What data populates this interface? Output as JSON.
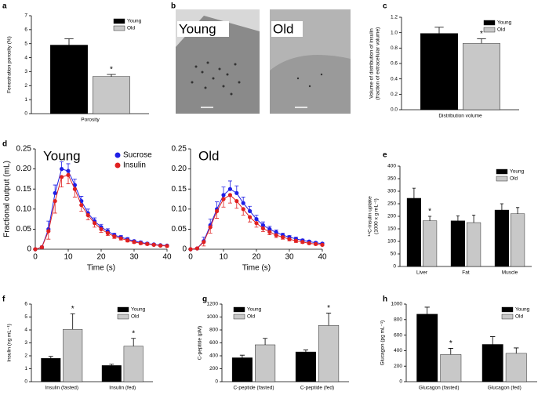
{
  "chart_data": [
    {
      "type": "bar",
      "label": "a",
      "ylabel": "Fenestration porosity (%)",
      "categories": [
        "Porosity"
      ],
      "series": [
        {
          "name": "Young",
          "color": "#000000",
          "values": [
            4.9
          ],
          "errors": [
            0.45
          ]
        },
        {
          "name": "Old",
          "color": "#c8c8c8",
          "values": [
            2.65
          ],
          "errors": [
            0.15
          ],
          "significance": [
            "*"
          ]
        }
      ],
      "ylim": [
        0,
        7
      ],
      "yticks": [
        0,
        1,
        2,
        3,
        4,
        5,
        6,
        7
      ],
      "legend": "upper right"
    },
    {
      "type": "bar",
      "label": "c",
      "ylabel": [
        "Volume of distribution of insulin",
        "(fraction of extracellular volume)"
      ],
      "categories": [
        "Distribution volume"
      ],
      "series": [
        {
          "name": "Young",
          "color": "#000000",
          "values": [
            0.99
          ],
          "errors": [
            0.08
          ]
        },
        {
          "name": "Old",
          "color": "#c8c8c8",
          "values": [
            0.86
          ],
          "errors": [
            0.06
          ],
          "significance": [
            "*"
          ]
        }
      ],
      "ylim": [
        0,
        1.2
      ],
      "yticks": [
        {
          "value": 0,
          "label": "0.0"
        },
        0.2,
        0.4,
        0.6,
        0.8,
        {
          "value": 1,
          "label": "1.0"
        },
        1.2
      ],
      "legend": "upper right"
    },
    {
      "type": "line",
      "label": "d",
      "title": "Young",
      "xlabel": "Time (s)",
      "ylabel": "Fractional output (mL)",
      "x": [
        0,
        2,
        4,
        6,
        8,
        10,
        12,
        14,
        16,
        18,
        20,
        22,
        24,
        26,
        28,
        30,
        32,
        34,
        36,
        38,
        40
      ],
      "series": [
        {
          "name": "Sucrose",
          "color": "#1f1fe6",
          "values": [
            0,
            0.005,
            0.05,
            0.14,
            0.2,
            0.195,
            0.16,
            0.12,
            0.09,
            0.07,
            0.055,
            0.045,
            0.035,
            0.03,
            0.025,
            0.02,
            0.017,
            0.014,
            0.012,
            0.01,
            0.009
          ],
          "errors": [
            0,
            0.003,
            0.02,
            0.02,
            0.018,
            0.018,
            0.015,
            0.012,
            0.01,
            0.008,
            0.007,
            0.006,
            0.005,
            0.004,
            0.004,
            0.003,
            0.003,
            0.003,
            0.002,
            0.002,
            0.002
          ]
        },
        {
          "name": "Insulin",
          "color": "#e02020",
          "values": [
            0,
            0.005,
            0.045,
            0.12,
            0.18,
            0.185,
            0.15,
            0.11,
            0.085,
            0.065,
            0.05,
            0.04,
            0.032,
            0.027,
            0.022,
            0.018,
            0.015,
            0.013,
            0.011,
            0.009,
            0.008
          ],
          "errors": [
            0,
            0.003,
            0.02,
            0.03,
            0.025,
            0.022,
            0.02,
            0.015,
            0.012,
            0.01,
            0.008,
            0.006,
            0.005,
            0.004,
            0.004,
            0.003,
            0.003,
            0.003,
            0.002,
            0.002,
            0.002
          ]
        }
      ],
      "xlim": [
        0,
        40
      ],
      "xticks": [
        0,
        10,
        20,
        30,
        40
      ],
      "ylim": [
        0,
        0.25
      ],
      "yticks": [
        0,
        0.05,
        {
          "value": 0.1,
          "label": "0.10"
        },
        0.15,
        {
          "value": 0.2,
          "label": "0.20"
        },
        0.25
      ],
      "legend": "upper right"
    },
    {
      "type": "line",
      "title": "Old",
      "xlabel": "Time (s)",
      "x": [
        0,
        2,
        4,
        6,
        8,
        10,
        12,
        14,
        16,
        18,
        20,
        22,
        24,
        26,
        28,
        30,
        32,
        34,
        36,
        38,
        40
      ],
      "series": [
        {
          "color": "#1f1fe6",
          "values": [
            0,
            0.002,
            0.02,
            0.06,
            0.1,
            0.135,
            0.15,
            0.14,
            0.115,
            0.095,
            0.075,
            0.06,
            0.05,
            0.042,
            0.035,
            0.03,
            0.026,
            0.022,
            0.019,
            0.016,
            0.014
          ],
          "errors": [
            0,
            0.002,
            0.01,
            0.015,
            0.018,
            0.02,
            0.02,
            0.018,
            0.015,
            0.012,
            0.01,
            0.008,
            0.007,
            0.006,
            0.005,
            0.004,
            0.004,
            0.003,
            0.003,
            0.003,
            0.002
          ]
        },
        {
          "color": "#e02020",
          "values": [
            0,
            0.002,
            0.018,
            0.055,
            0.095,
            0.125,
            0.135,
            0.12,
            0.1,
            0.08,
            0.065,
            0.052,
            0.043,
            0.035,
            0.03,
            0.025,
            0.021,
            0.018,
            0.015,
            0.013,
            0.011
          ],
          "errors": [
            0,
            0.002,
            0.01,
            0.015,
            0.018,
            0.02,
            0.02,
            0.018,
            0.015,
            0.012,
            0.01,
            0.008,
            0.007,
            0.006,
            0.005,
            0.004,
            0.004,
            0.003,
            0.003,
            0.003,
            0.002
          ]
        }
      ],
      "xlim": [
        0,
        40
      ],
      "xticks": [
        0,
        10,
        20,
        30,
        40
      ],
      "ylim": [
        0,
        0.25
      ],
      "yticks": [
        0,
        0.05,
        {
          "value": 0.1,
          "label": "0.10"
        },
        0.15,
        {
          "value": 0.2,
          "label": "0.20"
        },
        0.25
      ]
    },
    {
      "type": "bar",
      "label": "e",
      "ylabel": [
        "¹⁴C-insulin uptake",
        "(1000 x g mL⁻¹)"
      ],
      "categories": [
        "Liver",
        "Fat",
        "Muscle"
      ],
      "series": [
        {
          "name": "Young",
          "color": "#000000",
          "values": [
            272,
            182,
            225
          ],
          "errors": [
            40,
            20,
            25
          ]
        },
        {
          "name": "Old",
          "color": "#c8c8c8",
          "values": [
            182,
            175,
            210
          ],
          "errors": [
            18,
            30,
            25
          ],
          "significance": [
            "*",
            null,
            null
          ]
        }
      ],
      "ylim": [
        0,
        400
      ],
      "yticks": [
        0,
        50,
        100,
        150,
        200,
        250,
        300,
        350,
        400
      ],
      "legend": "upper right"
    },
    {
      "type": "bar",
      "label": "f",
      "ylabel": "Insulin (ng mL⁻¹)",
      "categories": [
        "Insulin (fasted)",
        "Insulin (fed)"
      ],
      "series": [
        {
          "name": "Young",
          "color": "#000000",
          "values": [
            1.8,
            1.25
          ],
          "errors": [
            0.15,
            0.1
          ]
        },
        {
          "name": "Old",
          "color": "#c8c8c8",
          "values": [
            4.05,
            2.75
          ],
          "errors": [
            1.2,
            0.6
          ],
          "significance": [
            "*",
            "*"
          ]
        }
      ],
      "ylim": [
        0,
        6
      ],
      "yticks": [
        0,
        1,
        2,
        3,
        4,
        5,
        6
      ],
      "legend": "upper right"
    },
    {
      "type": "bar",
      "label": "g",
      "ylabel": "C-peptide (pM)",
      "categories": [
        "C-peptide (fasted)",
        "C-peptide (fed)"
      ],
      "series": [
        {
          "name": "Young",
          "color": "#000000",
          "values": [
            370,
            460
          ],
          "errors": [
            40,
            30
          ]
        },
        {
          "name": "Old",
          "color": "#c8c8c8",
          "values": [
            570,
            870
          ],
          "errors": [
            100,
            190
          ],
          "significance": [
            null,
            "*"
          ]
        }
      ],
      "ylim": [
        0,
        1200
      ],
      "yticks": [
        0,
        200,
        400,
        600,
        800,
        1000,
        1200
      ],
      "legend": "upper left"
    },
    {
      "type": "bar",
      "label": "h",
      "ylabel": "Glucagon (pg mL⁻¹)",
      "categories": [
        "Glucagon (fasted)",
        "Glucagon (fed)"
      ],
      "series": [
        {
          "name": "Young",
          "color": "#000000",
          "values": [
            870,
            480
          ],
          "errors": [
            90,
            100
          ]
        },
        {
          "name": "Old",
          "color": "#c8c8c8",
          "values": [
            350,
            365
          ],
          "errors": [
            80,
            70
          ],
          "significance": [
            "*",
            null
          ]
        }
      ],
      "ylim": [
        0,
        1000
      ],
      "yticks": [
        0,
        200,
        400,
        600,
        800,
        1000
      ],
      "legend": "upper right"
    }
  ],
  "images_panel": {
    "label": "b",
    "captions": [
      "Young",
      "Old"
    ]
  }
}
